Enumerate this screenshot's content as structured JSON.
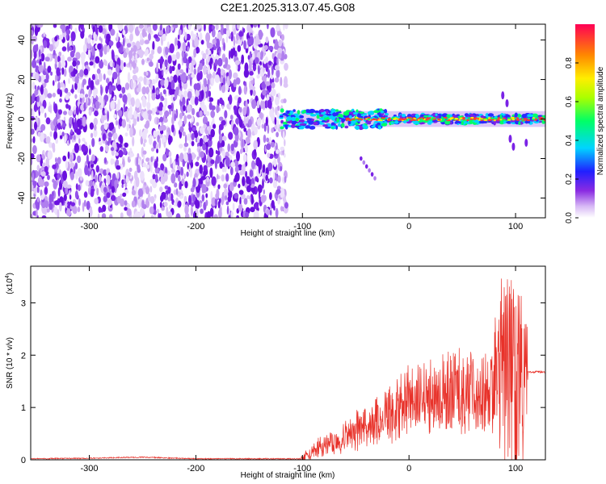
{
  "title": "C2E1.2025.313.07.45.G08",
  "chart_data": [
    {
      "type": "heatmap",
      "name": "spectrogram",
      "xlabel": "Height of straight line (km)",
      "ylabel": "Frequency (Hz)",
      "xlim": [
        -355,
        128
      ],
      "ylim": [
        -50,
        48
      ],
      "xticks": [
        -300,
        -200,
        -100,
        0,
        100
      ],
      "yticks": [
        -40,
        -20,
        0,
        20,
        40
      ],
      "noise_region_x": [
        -355,
        -115
      ],
      "signal_band_x": [
        -120,
        128
      ],
      "signal_band_center_hz": 0,
      "descending_streak": {
        "x": [
          -45,
          -32
        ],
        "y": [
          -20,
          -30
        ]
      },
      "colorbar": {
        "label": "Normalized spectral amplitude",
        "range": [
          0,
          1
        ],
        "ticks": [
          0.0,
          0.2,
          0.4,
          0.6,
          0.8
        ],
        "tick_labels": [
          "0.0",
          "0.2",
          "0.4",
          "0.6",
          "0.8"
        ],
        "colors": [
          "#ffffff",
          "#c89bf0",
          "#7a1ae6",
          "#2222ff",
          "#00e5ff",
          "#00ff44",
          "#e6ff00",
          "#ff8800",
          "#ff0044"
        ]
      }
    },
    {
      "type": "line",
      "name": "snr",
      "xlabel": "Height of straight line (km)",
      "ylabel": "SNR (10 * v/v)",
      "y_scale_label": "(x10",
      "y_scale_exp": "4",
      "y_scale_close": ")",
      "xlim": [
        -355,
        128
      ],
      "ylim": [
        0,
        3.7
      ],
      "xticks": [
        -300,
        -200,
        -100,
        0,
        100
      ],
      "yticks": [
        0,
        1,
        2,
        3
      ],
      "color": "#e8322a",
      "envelope": [
        [
          -355,
          0.02
        ],
        [
          -300,
          0.03
        ],
        [
          -250,
          0.05
        ],
        [
          -200,
          0.02
        ],
        [
          -150,
          0.02
        ],
        [
          -102,
          0.02
        ],
        [
          -95,
          0.15
        ],
        [
          -85,
          0.3
        ],
        [
          -70,
          0.45
        ],
        [
          -55,
          0.62
        ],
        [
          -40,
          0.85
        ],
        [
          -25,
          1.05
        ],
        [
          -10,
          1.25
        ],
        [
          0,
          1.42
        ],
        [
          15,
          1.55
        ],
        [
          30,
          1.65
        ],
        [
          45,
          1.68
        ],
        [
          60,
          1.68
        ],
        [
          75,
          1.7
        ],
        [
          85,
          1.75
        ],
        [
          95,
          1.7
        ],
        [
          105,
          1.6
        ],
        [
          113,
          1.68
        ],
        [
          128,
          1.68
        ]
      ]
    }
  ]
}
